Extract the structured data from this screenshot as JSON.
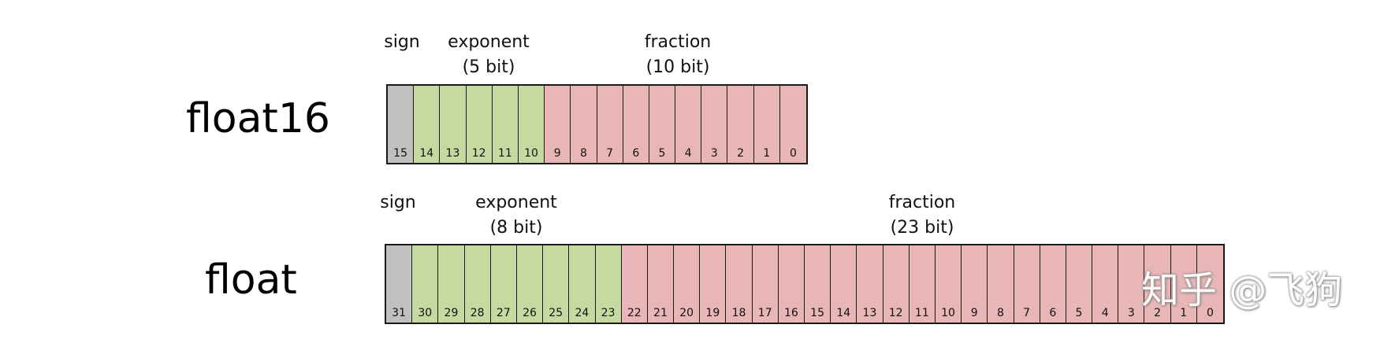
{
  "colors": {
    "sign": "#c0c0c0",
    "exponent": "#c6d9a1",
    "fraction": "#e8b6b6",
    "border": "#1a1a1a"
  },
  "float16": {
    "title": "float16",
    "sign_label": "sign",
    "exponent_label": "exponent",
    "exponent_sub": "(5 bit)",
    "fraction_label": "fraction",
    "fraction_sub": "(10 bit)",
    "bits": [
      {
        "n": "15",
        "field": "sign"
      },
      {
        "n": "14",
        "field": "exponent"
      },
      {
        "n": "13",
        "field": "exponent"
      },
      {
        "n": "12",
        "field": "exponent"
      },
      {
        "n": "11",
        "field": "exponent"
      },
      {
        "n": "10",
        "field": "exponent"
      },
      {
        "n": "9",
        "field": "fraction"
      },
      {
        "n": "8",
        "field": "fraction"
      },
      {
        "n": "7",
        "field": "fraction"
      },
      {
        "n": "6",
        "field": "fraction"
      },
      {
        "n": "5",
        "field": "fraction"
      },
      {
        "n": "4",
        "field": "fraction"
      },
      {
        "n": "3",
        "field": "fraction"
      },
      {
        "n": "2",
        "field": "fraction"
      },
      {
        "n": "1",
        "field": "fraction"
      },
      {
        "n": "0",
        "field": "fraction"
      }
    ]
  },
  "float32": {
    "title": "float",
    "sign_label": "sign",
    "exponent_label": "exponent",
    "exponent_sub": "(8 bit)",
    "fraction_label": "fraction",
    "fraction_sub": "(23 bit)",
    "bits": [
      {
        "n": "31",
        "field": "sign"
      },
      {
        "n": "30",
        "field": "exponent"
      },
      {
        "n": "29",
        "field": "exponent"
      },
      {
        "n": "28",
        "field": "exponent"
      },
      {
        "n": "27",
        "field": "exponent"
      },
      {
        "n": "26",
        "field": "exponent"
      },
      {
        "n": "25",
        "field": "exponent"
      },
      {
        "n": "24",
        "field": "exponent"
      },
      {
        "n": "23",
        "field": "exponent"
      },
      {
        "n": "22",
        "field": "fraction"
      },
      {
        "n": "21",
        "field": "fraction"
      },
      {
        "n": "20",
        "field": "fraction"
      },
      {
        "n": "19",
        "field": "fraction"
      },
      {
        "n": "18",
        "field": "fraction"
      },
      {
        "n": "17",
        "field": "fraction"
      },
      {
        "n": "16",
        "field": "fraction"
      },
      {
        "n": "15",
        "field": "fraction"
      },
      {
        "n": "14",
        "field": "fraction"
      },
      {
        "n": "13",
        "field": "fraction"
      },
      {
        "n": "12",
        "field": "fraction"
      },
      {
        "n": "11",
        "field": "fraction"
      },
      {
        "n": "10",
        "field": "fraction"
      },
      {
        "n": "9",
        "field": "fraction"
      },
      {
        "n": "8",
        "field": "fraction"
      },
      {
        "n": "7",
        "field": "fraction"
      },
      {
        "n": "6",
        "field": "fraction"
      },
      {
        "n": "5",
        "field": "fraction"
      },
      {
        "n": "4",
        "field": "fraction"
      },
      {
        "n": "3",
        "field": "fraction"
      },
      {
        "n": "2",
        "field": "fraction"
      },
      {
        "n": "1",
        "field": "fraction"
      },
      {
        "n": "0",
        "field": "fraction"
      }
    ]
  },
  "watermark": "知乎 @飞狗"
}
